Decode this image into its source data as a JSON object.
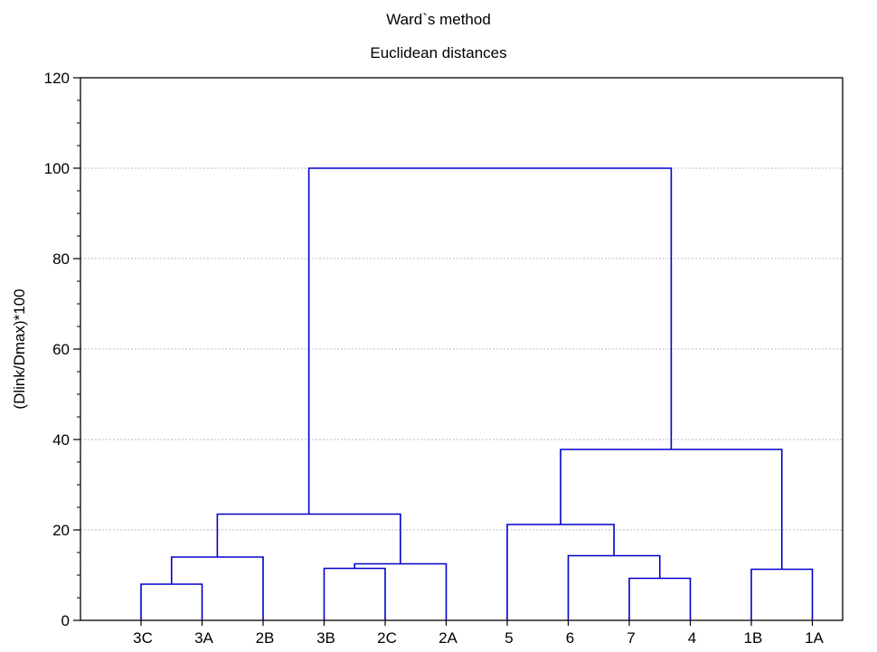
{
  "chart_data": {
    "type": "dendrogram",
    "title": "Ward`s method",
    "subtitle": "Euclidean distances",
    "xlabel": "",
    "ylabel": "(Dlink/Dmax)*100",
    "ylim": [
      0,
      120
    ],
    "y_ticks": [
      0,
      20,
      40,
      60,
      80,
      100,
      120
    ],
    "grid": "horizontal-dotted",
    "leaves": [
      "3C",
      "3A",
      "2B",
      "3B",
      "2C",
      "2A",
      "5",
      "6",
      "7",
      "4",
      "1B",
      "1A"
    ],
    "merges": [
      {
        "left": "3C",
        "right": "3A",
        "height": 8,
        "result": "c1"
      },
      {
        "left": "c1",
        "right": "2B",
        "height": 14,
        "result": "c2"
      },
      {
        "left": "3B",
        "right": "2C",
        "height": 11.5,
        "result": "c3"
      },
      {
        "left": "c3",
        "right": "2A",
        "height": 12.5,
        "result": "c4"
      },
      {
        "left": "c2",
        "right": "c4",
        "height": 23.5,
        "result": "c5"
      },
      {
        "left": "7",
        "right": "4",
        "height": 9.3,
        "result": "c6"
      },
      {
        "left": "6",
        "right": "c6",
        "height": 14.3,
        "result": "c7"
      },
      {
        "left": "5",
        "right": "c7",
        "height": 21.2,
        "result": "c8"
      },
      {
        "left": "1B",
        "right": "1A",
        "height": 11.3,
        "result": "c9"
      },
      {
        "left": "c8",
        "right": "c9",
        "height": 37.8,
        "result": "c10"
      },
      {
        "left": "c5",
        "right": "c10",
        "height": 100,
        "result": "root"
      }
    ],
    "line_color": "#0000cc",
    "grid_color": "#bbbbbb"
  }
}
